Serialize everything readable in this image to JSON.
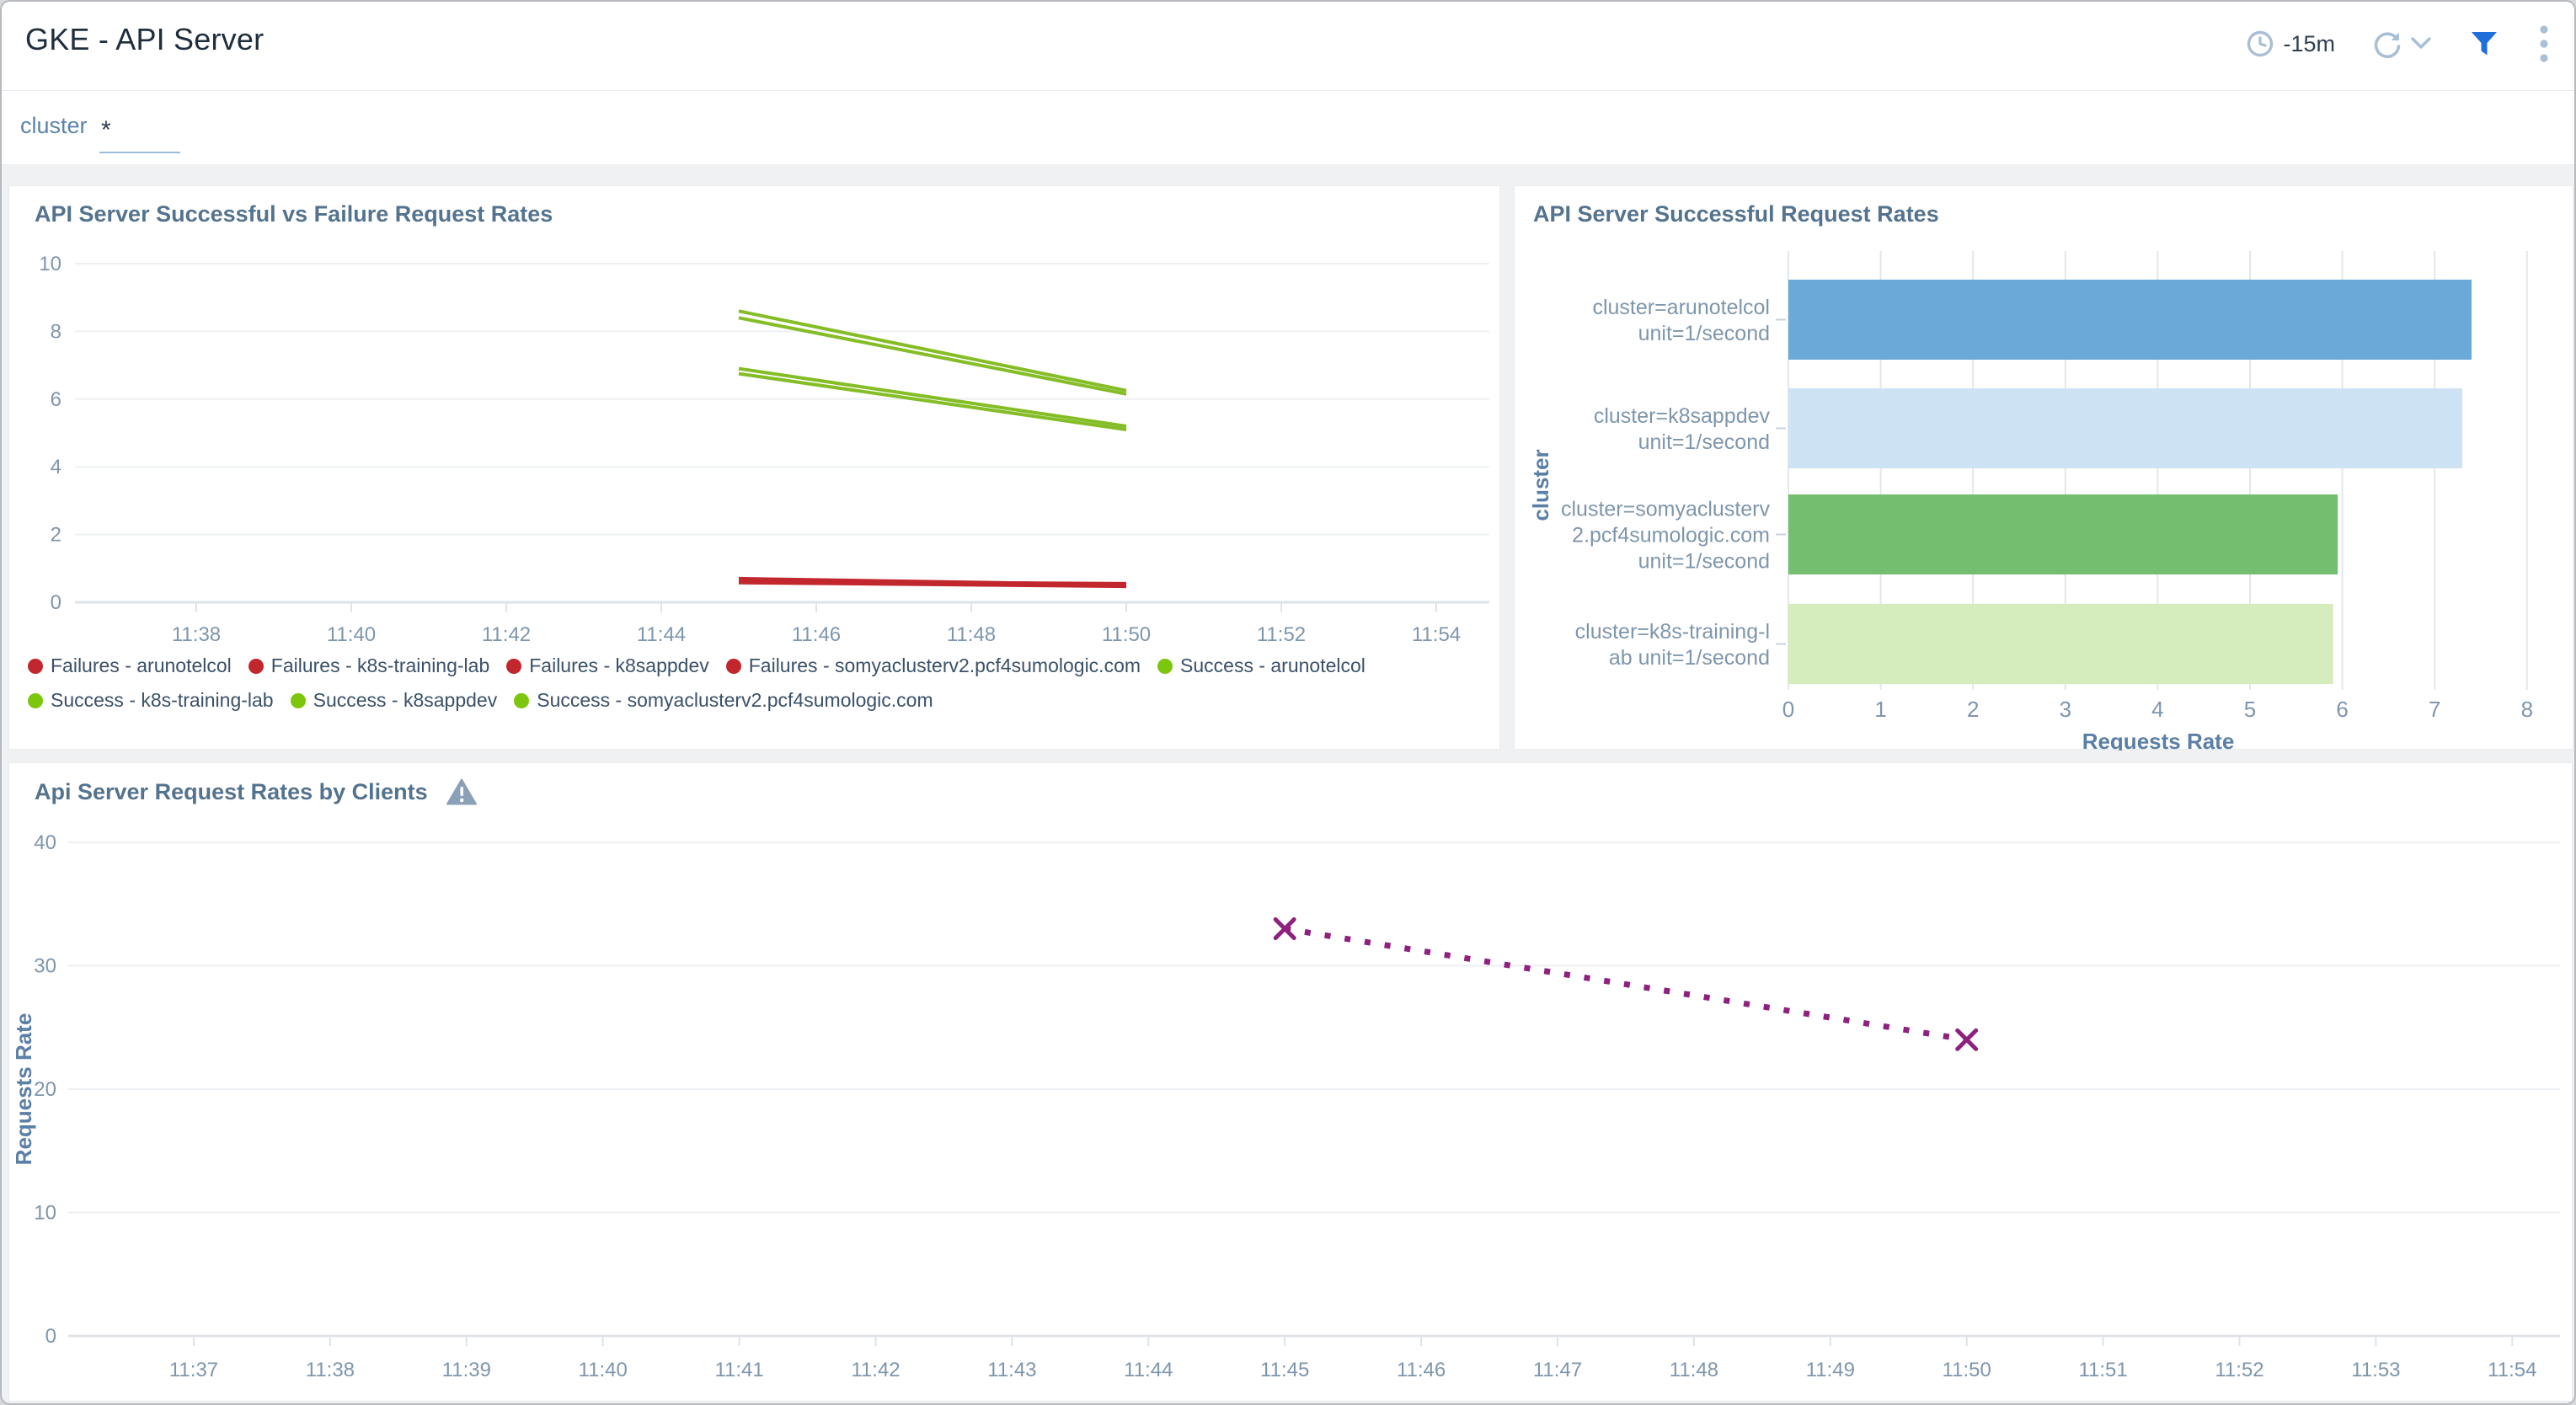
{
  "header": {
    "title": "GKE - API Server",
    "time_range": "-15m"
  },
  "filter_bar": {
    "label": "cluster",
    "value": "*"
  },
  "palette": {
    "failure_red": "#c2272d",
    "success_green": "#85bd27",
    "legend_green": "#7cc70e",
    "purple": "#8e2180",
    "bar_blue": "#6aa9d8",
    "bar_pale_blue": "#cde2f2",
    "bar_green": "#74bf6f",
    "bar_pale_green": "#d5edbc",
    "filter_funnel_blue": "#1e6fd9",
    "icon_gray_blue": "#a9bfd4",
    "warning_icon": "#8ba1b8"
  },
  "chart_data": [
    {
      "id": "success-vs-failure",
      "type": "line",
      "title": "API Server Successful vs Failure Request Rates",
      "x_ticks": [
        "11:38",
        "11:40",
        "11:42",
        "11:44",
        "11:46",
        "11:48",
        "11:50",
        "11:52",
        "11:54"
      ],
      "y_ticks": [
        0,
        2,
        4,
        6,
        8,
        10
      ],
      "ylim": [
        0,
        10
      ],
      "grid": "horizontal",
      "legend_position": "bottom",
      "series": [
        {
          "name": "Failures - arunotelcol",
          "color": "#c2272d",
          "points": [
            {
              "x": "11:45",
              "y": 0.66
            },
            {
              "x": "11:50",
              "y": 0.5
            }
          ]
        },
        {
          "name": "Failures - k8s-training-lab",
          "color": "#c2272d",
          "points": [
            {
              "x": "11:45",
              "y": 0.62
            },
            {
              "x": "11:50",
              "y": 0.55
            }
          ]
        },
        {
          "name": "Failures - k8sappdev",
          "color": "#c2272d",
          "points": [
            {
              "x": "11:45",
              "y": 0.7
            },
            {
              "x": "11:50",
              "y": 0.52
            }
          ]
        },
        {
          "name": "Failures - somyaclusterv2.pcf4sumologic.com",
          "color": "#c2272d",
          "points": [
            {
              "x": "11:45",
              "y": 0.58
            },
            {
              "x": "11:50",
              "y": 0.47
            }
          ]
        },
        {
          "name": "Success - arunotelcol",
          "color": "#85bd27",
          "points": [
            {
              "x": "11:45",
              "y": 8.6
            },
            {
              "x": "11:50",
              "y": 6.25
            }
          ]
        },
        {
          "name": "Success - k8s-training-lab",
          "color": "#85bd27",
          "points": [
            {
              "x": "11:45",
              "y": 6.75
            },
            {
              "x": "11:50",
              "y": 5.1
            }
          ]
        },
        {
          "name": "Success - k8sappdev",
          "color": "#85bd27",
          "points": [
            {
              "x": "11:45",
              "y": 8.4
            },
            {
              "x": "11:50",
              "y": 6.15
            }
          ]
        },
        {
          "name": "Success - somyaclusterv2.pcf4sumologic.com",
          "color": "#85bd27",
          "points": [
            {
              "x": "11:45",
              "y": 6.9
            },
            {
              "x": "11:50",
              "y": 5.2
            }
          ]
        }
      ]
    },
    {
      "id": "successful-request-rates",
      "type": "bar",
      "orientation": "horizontal",
      "title": "API Server Successful Request Rates",
      "xlabel": "Requests Rate",
      "ylabel": "cluster",
      "xlim": [
        0,
        8
      ],
      "x_ticks": [
        0,
        1,
        2,
        3,
        4,
        5,
        6,
        7,
        8
      ],
      "grid": "vertical",
      "categories": [
        {
          "label_lines": [
            "cluster=arunotelcol",
            "unit=1/second"
          ],
          "value": 7.4,
          "color": "#6aa9d8"
        },
        {
          "label_lines": [
            "cluster=k8sappdev",
            "unit=1/second"
          ],
          "value": 7.3,
          "color": "#cde2f2"
        },
        {
          "label_lines": [
            "cluster=somyaclusterv",
            "2.pcf4sumologic.com",
            "unit=1/second"
          ],
          "value": 5.95,
          "color": "#74bf6f"
        },
        {
          "label_lines": [
            "cluster=k8s-training-l",
            "ab unit=1/second"
          ],
          "value": 5.9,
          "color": "#d5edbc"
        }
      ]
    },
    {
      "id": "request-rates-by-clients",
      "type": "line",
      "style": "dotted",
      "title": "Api Server Request Rates by Clients",
      "has_warning_icon": true,
      "ylabel": "Requests Rate",
      "x_ticks": [
        "11:37",
        "11:38",
        "11:39",
        "11:40",
        "11:41",
        "11:42",
        "11:43",
        "11:44",
        "11:45",
        "11:46",
        "11:47",
        "11:48",
        "11:49",
        "11:50",
        "11:51",
        "11:52",
        "11:53",
        "11:54"
      ],
      "y_ticks": [
        0,
        10,
        20,
        30,
        40
      ],
      "ylim": [
        0,
        40
      ],
      "grid": "horizontal",
      "series": [
        {
          "name": "",
          "color": "#8e2180",
          "marker": "x",
          "points": [
            {
              "x": "11:45",
              "y": 33
            },
            {
              "x": "11:50",
              "y": 24
            }
          ]
        }
      ]
    }
  ]
}
